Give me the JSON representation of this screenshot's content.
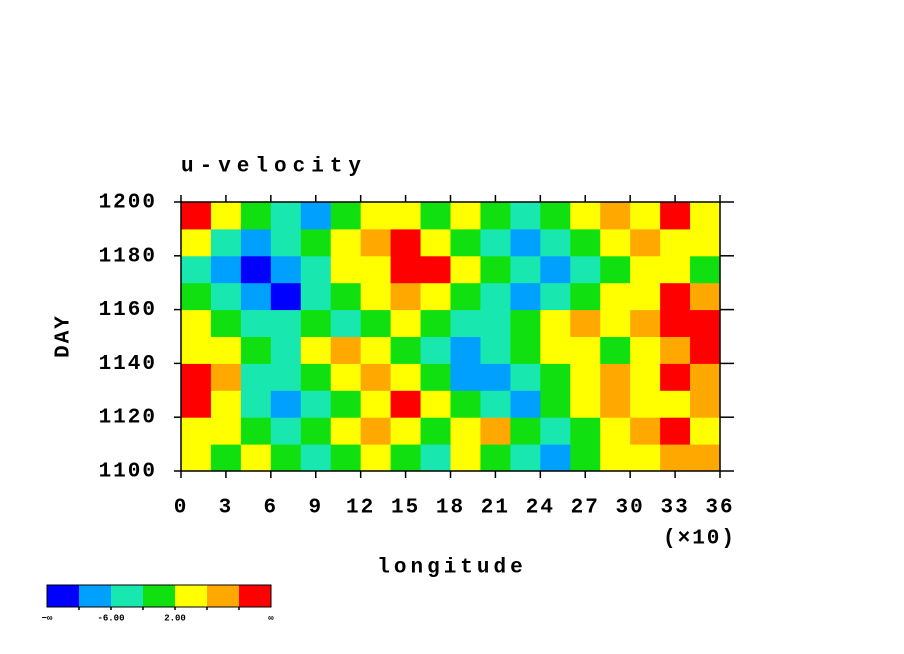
{
  "chart_data": {
    "type": "heatmap",
    "title": "u-velocity",
    "x_label": "longitude",
    "y_label": "DAY",
    "x_multiplier_label": "(×10)",
    "x": [
      1,
      3,
      5,
      7,
      9,
      11,
      13,
      15,
      17,
      19,
      21,
      23,
      25,
      27,
      29,
      31,
      33,
      35
    ],
    "y": [
      1105,
      1115,
      1125,
      1135,
      1145,
      1155,
      1165,
      1175,
      1185,
      1195
    ],
    "z": [
      [
        4,
        0,
        4,
        0,
        -4,
        0,
        4,
        0,
        -4,
        4,
        0,
        -4,
        -8,
        0,
        4,
        4,
        8,
        8
      ],
      [
        4,
        4,
        0,
        -4,
        0,
        4,
        8,
        4,
        0,
        4,
        8,
        0,
        -4,
        0,
        4,
        8,
        12,
        4
      ],
      [
        12,
        4,
        -4,
        -8,
        -4,
        0,
        4,
        12,
        4,
        0,
        -4,
        -8,
        0,
        4,
        8,
        4,
        4,
        8
      ],
      [
        12,
        8,
        -4,
        -4,
        0,
        4,
        8,
        4,
        0,
        -8,
        -8,
        -4,
        0,
        4,
        8,
        4,
        12,
        8
      ],
      [
        4,
        4,
        0,
        -4,
        4,
        8,
        4,
        0,
        -4,
        -8,
        -4,
        0,
        4,
        4,
        0,
        4,
        8,
        12
      ],
      [
        4,
        0,
        -4,
        -4,
        0,
        -4,
        0,
        4,
        0,
        -4,
        -4,
        0,
        4,
        8,
        4,
        8,
        12,
        12
      ],
      [
        0,
        -4,
        -8,
        -12,
        -4,
        0,
        4,
        8,
        4,
        0,
        -4,
        -8,
        -4,
        0,
        4,
        4,
        12,
        8
      ],
      [
        -4,
        -8,
        -12,
        -8,
        -4,
        4,
        4,
        12,
        12,
        4,
        0,
        -4,
        -8,
        -4,
        0,
        4,
        4,
        0
      ],
      [
        4,
        -4,
        -8,
        -4,
        0,
        4,
        8,
        12,
        4,
        0,
        -4,
        -8,
        -4,
        0,
        4,
        8,
        4,
        4
      ],
      [
        12,
        4,
        0,
        -4,
        -8,
        0,
        4,
        4,
        0,
        4,
        0,
        -4,
        0,
        4,
        8,
        4,
        12,
        4
      ]
    ],
    "xlim": [
      0,
      36
    ],
    "xticks": [
      0,
      3,
      6,
      9,
      12,
      15,
      18,
      21,
      24,
      27,
      30,
      33,
      36
    ],
    "ylim": [
      1100,
      1200
    ],
    "yticks": [
      1100,
      1120,
      1140,
      1160,
      1180,
      1200
    ],
    "levels": [
      -10,
      -6,
      -2,
      2,
      6,
      10
    ],
    "colors": [
      "#0000ff",
      "#00a0ff",
      "#18e8b0",
      "#10e010",
      "#ffff00",
      "#ffa800",
      "#ff0000"
    ],
    "colorbar_labels": [
      {
        "value": -6,
        "label": "-6.00"
      },
      {
        "value": 2,
        "label": "2.00"
      }
    ],
    "colorbar_end_labels": [
      "−∞",
      "∞"
    ]
  }
}
